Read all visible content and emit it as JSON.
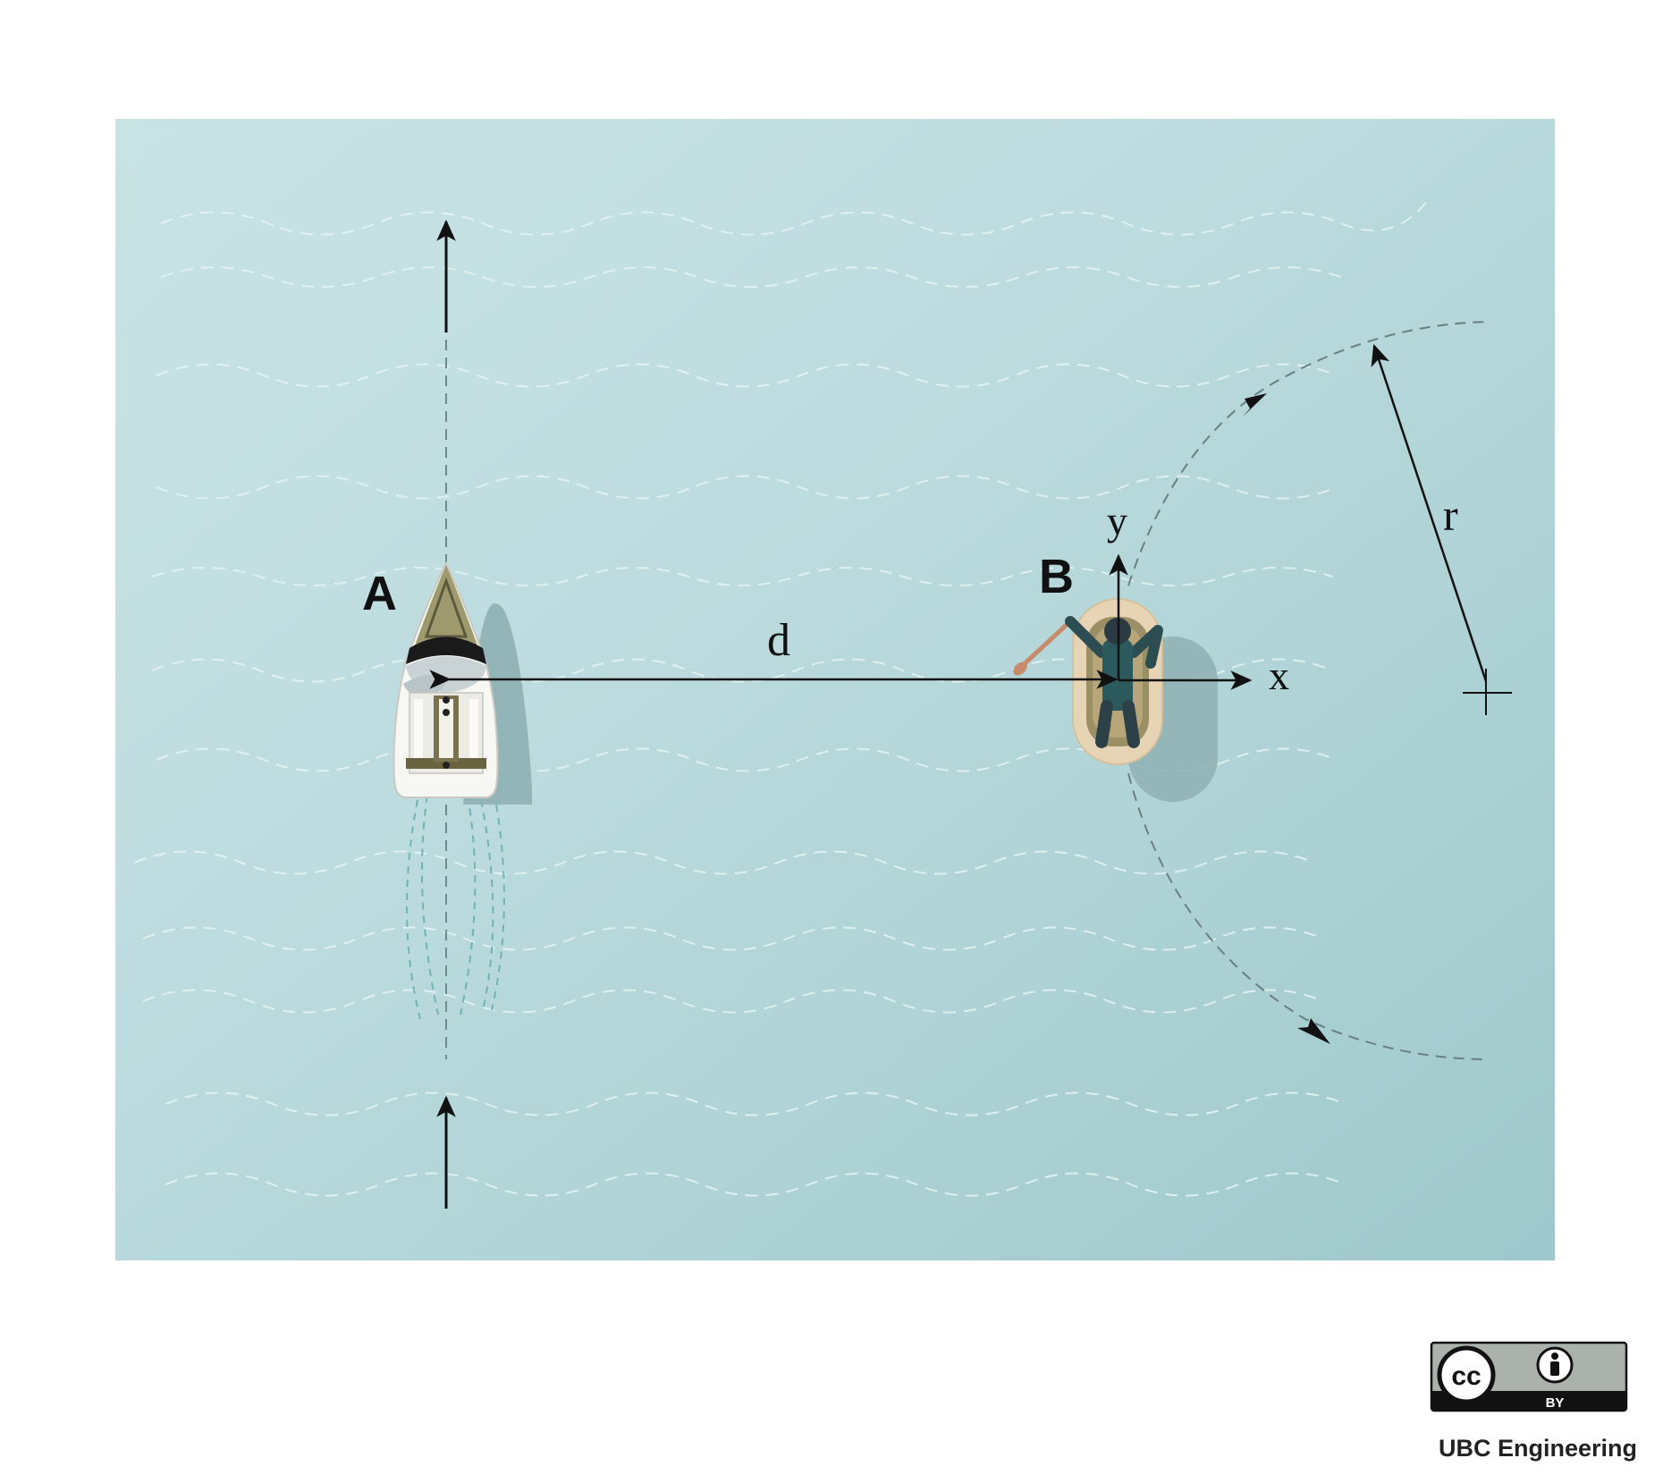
{
  "labels": {
    "boat_a": "A",
    "boat_b": "B",
    "distance": "d",
    "axis_x": "x",
    "axis_y": "y",
    "radius": "r"
  },
  "license": {
    "cc_text": "cc",
    "by_text": "BY"
  },
  "credit": "UBC Engineering",
  "colors": {
    "water_light": "#c4e0e2",
    "water_dark": "#a0cacd",
    "arrow": "#111111",
    "path_dash": "#6f8a8c"
  }
}
